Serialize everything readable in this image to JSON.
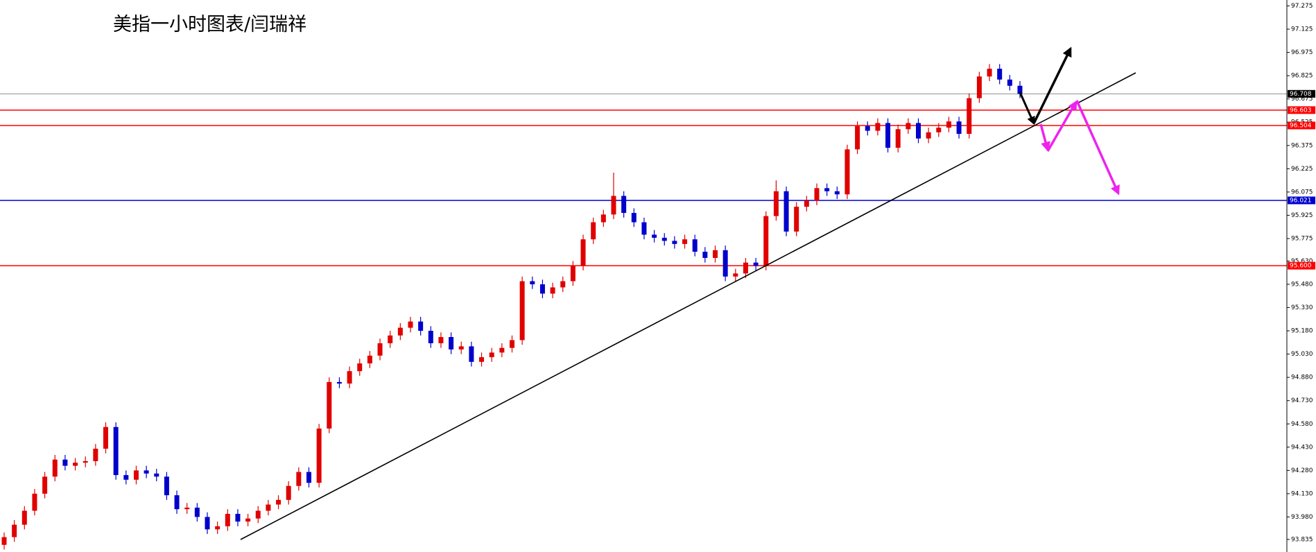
{
  "chart_data": {
    "type": "candlestick",
    "title": "美指一小时图表/闫瑞祥",
    "ylim": [
      93.754,
      97.313
    ],
    "yticks": [
      97.275,
      97.125,
      96.975,
      96.825,
      96.675,
      96.525,
      96.375,
      96.225,
      96.075,
      95.925,
      95.775,
      {
        "value": 95.63,
        "label": "95.630"
      },
      {
        "value": 95.48,
        "label": "95.480"
      },
      {
        "value": 95.33,
        "label": "95.330"
      },
      {
        "value": 95.18,
        "label": "95.180"
      },
      {
        "value": 95.03,
        "label": "95.030"
      },
      {
        "value": 94.88,
        "label": "94.880"
      },
      {
        "value": 94.73,
        "label": "94.730"
      },
      {
        "value": 94.58,
        "label": "94.580"
      },
      {
        "value": 94.43,
        "label": "94.430"
      },
      {
        "value": 94.28,
        "label": "94.280"
      },
      {
        "value": 94.13,
        "label": "94.130"
      },
      {
        "value": 93.98,
        "label": "93.980"
      },
      93.835
    ],
    "up_color": "#e00000",
    "down_color": "#0000cc",
    "levels": [
      {
        "value": 96.708,
        "color": "#b0b0b0",
        "label_color": "#000000"
      },
      {
        "value": 96.603,
        "color": "#ff0000",
        "label_color": "#ff0000"
      },
      {
        "value": 96.504,
        "color": "#ff0000",
        "label_color": "#ff0000"
      },
      {
        "value": 96.021,
        "color": "#0000cc",
        "label_color": "#0000cc"
      },
      {
        "value": 95.6,
        "label": "95.600",
        "color": "#ff0000",
        "label_color": "#ff0000"
      }
    ],
    "open": [
      93.8,
      93.85,
      93.93,
      94.02,
      94.13,
      94.24,
      94.35,
      94.31,
      94.33,
      94.34,
      94.42,
      94.56,
      94.25,
      94.22,
      94.28,
      94.26,
      94.24,
      94.12,
      94.03,
      94.04,
      93.98,
      93.9,
      93.92,
      94.0,
      93.95,
      93.97,
      94.02,
      94.06,
      94.09,
      94.18,
      94.27,
      94.2,
      94.55,
      94.85,
      94.84,
      94.92,
      94.97,
      95.02,
      95.1,
      95.15,
      95.2,
      95.24,
      95.18,
      95.1,
      95.14,
      95.06,
      95.08,
      94.98,
      95.01,
      95.04,
      95.07,
      95.12,
      95.5,
      95.48,
      95.42,
      95.46,
      95.5,
      95.6,
      95.77,
      95.88,
      95.93,
      96.05,
      95.94,
      95.88,
      95.8,
      95.78,
      95.76,
      95.74,
      95.77,
      95.69,
      95.65,
      95.7,
      95.53,
      95.55,
      95.62,
      95.6,
      95.92,
      96.08,
      95.82,
      95.98,
      96.02,
      96.1,
      96.08,
      96.06,
      96.35,
      96.5,
      96.47,
      96.52,
      96.36,
      96.48,
      96.52,
      96.42,
      96.46,
      96.49,
      96.53,
      96.45,
      96.68,
      96.82,
      96.87,
      96.8,
      96.76
    ],
    "high": [
      93.88,
      93.96,
      94.05,
      94.16,
      94.27,
      94.38,
      94.38,
      94.36,
      94.37,
      94.45,
      94.59,
      94.59,
      94.28,
      94.31,
      94.31,
      94.29,
      94.27,
      94.15,
      94.07,
      94.07,
      94.01,
      93.95,
      94.03,
      94.03,
      94.0,
      94.05,
      94.09,
      94.12,
      94.21,
      94.3,
      94.3,
      94.58,
      94.88,
      94.88,
      94.95,
      95.0,
      95.05,
      95.13,
      95.18,
      95.23,
      95.27,
      95.27,
      95.21,
      95.17,
      95.17,
      95.11,
      95.11,
      95.04,
      95.07,
      95.1,
      95.15,
      95.53,
      95.53,
      95.51,
      95.49,
      95.53,
      95.63,
      95.8,
      95.91,
      95.96,
      96.2,
      96.08,
      95.97,
      95.91,
      95.83,
      95.81,
      95.79,
      95.8,
      95.8,
      95.72,
      95.73,
      95.73,
      95.58,
      95.65,
      95.65,
      95.95,
      96.15,
      96.11,
      96.01,
      96.05,
      96.13,
      96.13,
      96.11,
      96.38,
      96.53,
      96.53,
      96.55,
      96.55,
      96.51,
      96.55,
      96.55,
      96.49,
      96.52,
      96.56,
      96.56,
      96.71,
      96.85,
      96.9,
      96.9,
      96.83,
      96.79
    ],
    "low": [
      93.77,
      93.82,
      93.9,
      93.99,
      94.1,
      94.21,
      94.28,
      94.28,
      94.3,
      94.31,
      94.39,
      94.22,
      94.19,
      94.19,
      94.23,
      94.21,
      94.09,
      94.0,
      94.0,
      93.95,
      93.87,
      93.87,
      93.89,
      93.92,
      93.92,
      93.94,
      93.99,
      94.03,
      94.06,
      94.15,
      94.17,
      94.17,
      94.52,
      94.81,
      94.81,
      94.89,
      94.94,
      94.99,
      95.07,
      95.12,
      95.17,
      95.15,
      95.07,
      95.07,
      95.03,
      95.03,
      94.95,
      94.95,
      94.98,
      95.01,
      95.04,
      95.09,
      95.45,
      95.39,
      95.39,
      95.43,
      95.47,
      95.57,
      95.74,
      95.85,
      95.9,
      95.91,
      95.85,
      95.77,
      95.75,
      95.73,
      95.71,
      95.71,
      95.66,
      95.62,
      95.62,
      95.5,
      95.5,
      95.52,
      95.57,
      95.57,
      95.89,
      95.79,
      95.79,
      95.95,
      95.99,
      96.05,
      96.03,
      96.03,
      96.32,
      96.44,
      96.44,
      96.33,
      96.33,
      96.45,
      96.39,
      96.39,
      96.43,
      96.46,
      96.42,
      96.42,
      96.65,
      96.79,
      96.77,
      96.73,
      96.68
    ],
    "close": [
      93.85,
      93.93,
      94.02,
      94.13,
      94.24,
      94.35,
      94.31,
      94.33,
      94.34,
      94.42,
      94.56,
      94.25,
      94.22,
      94.28,
      94.26,
      94.24,
      94.12,
      94.03,
      94.04,
      93.98,
      93.9,
      93.92,
      94.0,
      93.95,
      93.97,
      94.02,
      94.06,
      94.09,
      94.18,
      94.27,
      94.2,
      94.55,
      94.85,
      94.84,
      94.92,
      94.97,
      95.02,
      95.1,
      95.15,
      95.2,
      95.24,
      95.18,
      95.1,
      95.14,
      95.06,
      95.08,
      94.98,
      95.01,
      95.04,
      95.07,
      95.12,
      95.5,
      95.48,
      95.42,
      95.46,
      95.5,
      95.6,
      95.77,
      95.88,
      95.93,
      96.05,
      95.94,
      95.88,
      95.8,
      95.78,
      95.76,
      95.74,
      95.77,
      95.69,
      95.65,
      95.7,
      95.53,
      95.55,
      95.62,
      95.6,
      95.92,
      96.08,
      95.82,
      95.98,
      96.02,
      96.1,
      96.08,
      96.06,
      96.35,
      96.5,
      96.47,
      96.52,
      96.36,
      96.48,
      96.52,
      96.42,
      96.46,
      96.49,
      96.53,
      96.45,
      96.68,
      96.82,
      96.87,
      96.8,
      96.76,
      96.708
    ]
  }
}
